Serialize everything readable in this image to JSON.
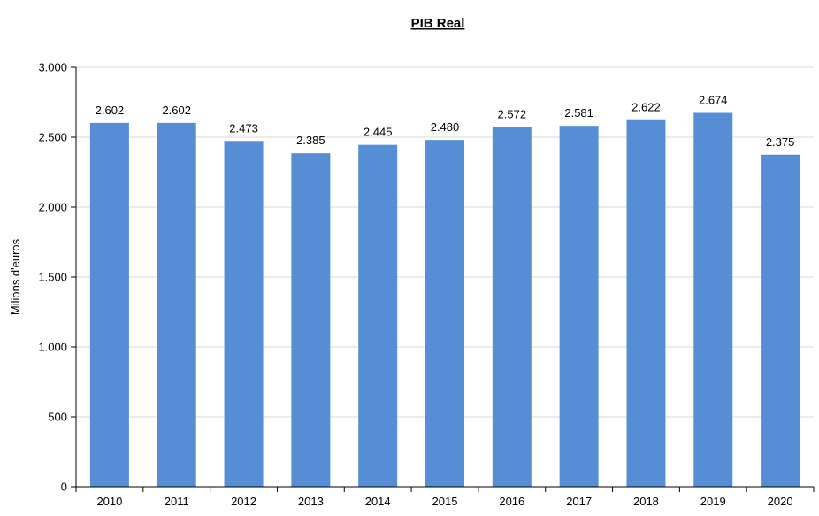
{
  "chart_data": {
    "type": "bar",
    "title": "PIB Real",
    "xlabel": "",
    "ylabel": "Milions d'euros",
    "categories": [
      "2010",
      "2011",
      "2012",
      "2013",
      "2014",
      "2015",
      "2016",
      "2017",
      "2018",
      "2019",
      "2020"
    ],
    "values": [
      2602,
      2602,
      2473,
      2385,
      2445,
      2480,
      2572,
      2581,
      2622,
      2674,
      2375
    ],
    "data_labels": [
      "2.602",
      "2.602",
      "2.473",
      "2.385",
      "2.445",
      "2.480",
      "2.572",
      "2.581",
      "2.622",
      "2.674",
      "2.375"
    ],
    "ylim": [
      0,
      3000
    ],
    "yticks": [
      0,
      500,
      1000,
      1500,
      2000,
      2500,
      3000
    ],
    "ytick_labels": [
      "0",
      "500",
      "1.000",
      "1.500",
      "2.000",
      "2.500",
      "3.000"
    ],
    "grid": true,
    "legend": "none",
    "colors": {
      "bar": "#558ed5",
      "grid": "#d9d9d9",
      "axis": "#000000"
    }
  }
}
